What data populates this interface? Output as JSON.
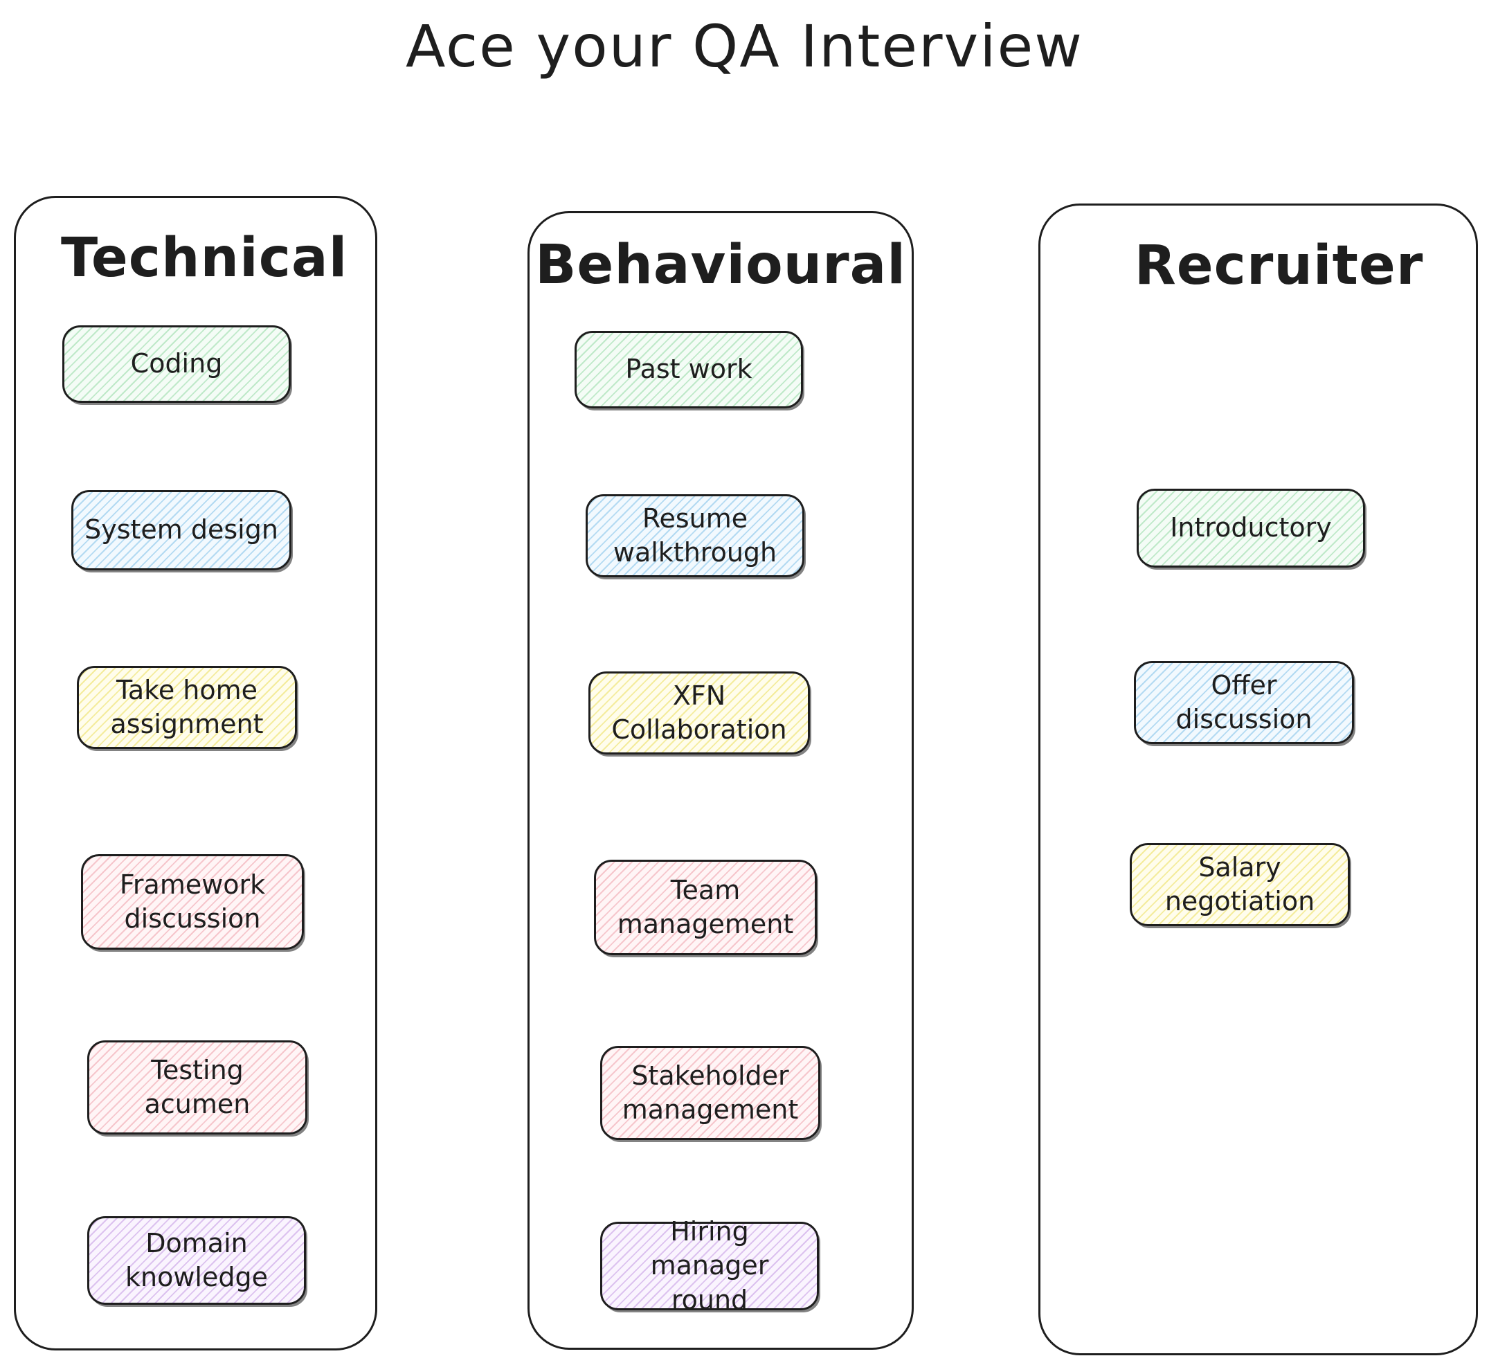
{
  "title": "Ace your QA Interview",
  "columns": [
    {
      "title": "Technical",
      "items": [
        {
          "label": "Coding",
          "color": "green"
        },
        {
          "label": "System design",
          "color": "blue"
        },
        {
          "label": "Take home\nassignment",
          "color": "yellow"
        },
        {
          "label": "Framework\ndiscussion",
          "color": "pink"
        },
        {
          "label": "Testing\nacumen",
          "color": "pink"
        },
        {
          "label": "Domain\nknowledge",
          "color": "purple"
        }
      ]
    },
    {
      "title": "Behavioural",
      "items": [
        {
          "label": "Past work",
          "color": "green"
        },
        {
          "label": "Resume\nwalkthrough",
          "color": "blue"
        },
        {
          "label": "XFN\nCollaboration",
          "color": "yellow"
        },
        {
          "label": "Team\nmanagement",
          "color": "pink"
        },
        {
          "label": "Stakeholder\nmanagement",
          "color": "pink"
        },
        {
          "label": "Hiring manager\nround",
          "color": "purple"
        }
      ]
    },
    {
      "title": "Recruiter",
      "items": [
        {
          "label": "Introductory",
          "color": "green"
        },
        {
          "label": "Offer\ndiscussion",
          "color": "blue"
        },
        {
          "label": "Salary\nnegotiation",
          "color": "yellow"
        }
      ]
    }
  ]
}
